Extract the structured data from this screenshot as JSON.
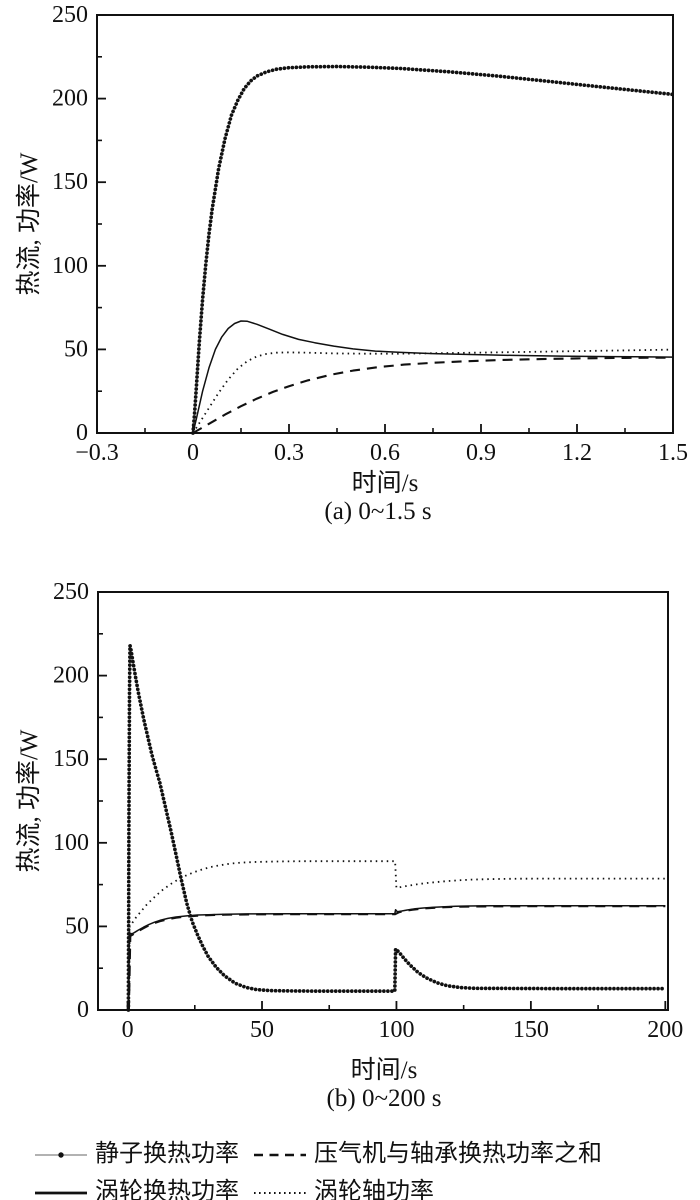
{
  "page": {
    "background": "#ffffff",
    "ink": "#111111",
    "legend_line_gray": "#858585"
  },
  "chart_data": [
    {
      "type": "line",
      "caption": "(a) 0~1.5 s",
      "xlabel": "时间/s",
      "ylabel": "热流, 功率/W",
      "xlim": [
        -0.3,
        1.5
      ],
      "ylim": [
        0,
        250
      ],
      "x_ticks": [
        {
          "v": -0.3,
          "label": "−0.3"
        },
        {
          "v": 0,
          "label": "0"
        },
        {
          "v": 0.3,
          "label": "0.3"
        },
        {
          "v": 0.6,
          "label": "0.6"
        },
        {
          "v": 0.9,
          "label": "0.9"
        },
        {
          "v": 1.2,
          "label": "1.2"
        },
        {
          "v": 1.5,
          "label": "1.5"
        }
      ],
      "x_minor": [
        -0.15,
        0.15,
        0.45,
        0.75,
        1.05,
        1.35
      ],
      "y_ticks": [
        {
          "v": 0,
          "label": "0"
        },
        {
          "v": 50,
          "label": "50"
        },
        {
          "v": 100,
          "label": "100"
        },
        {
          "v": 150,
          "label": "150"
        },
        {
          "v": 200,
          "label": "200"
        },
        {
          "v": 250,
          "label": "250"
        }
      ],
      "y_minor": [
        25,
        75,
        125,
        175,
        225
      ],
      "grid": false,
      "series": [
        {
          "name": "压气机与轴承换热功率之和",
          "style": "dashed",
          "points": [
            [
              0,
              0
            ],
            [
              0.05,
              5.5
            ],
            [
              0.1,
              11
            ],
            [
              0.15,
              16
            ],
            [
              0.2,
              20.6
            ],
            [
              0.25,
              24.6
            ],
            [
              0.3,
              28
            ],
            [
              0.36,
              31.5
            ],
            [
              0.43,
              34.8
            ],
            [
              0.5,
              37.3
            ],
            [
              0.58,
              39.4
            ],
            [
              0.66,
              40.9
            ],
            [
              0.75,
              42
            ],
            [
              0.85,
              42.9
            ],
            [
              0.95,
              43.6
            ],
            [
              1.05,
              44.1
            ],
            [
              1.2,
              44.6
            ],
            [
              1.35,
              44.9
            ],
            [
              1.5,
              45.1
            ]
          ]
        },
        {
          "name": "涡轮轴功率",
          "style": "dotted",
          "points": [
            [
              0,
              0
            ],
            [
              0.02,
              6
            ],
            [
              0.05,
              15
            ],
            [
              0.08,
              24
            ],
            [
              0.11,
              32
            ],
            [
              0.14,
              38.5
            ],
            [
              0.17,
              43
            ],
            [
              0.2,
              45.8
            ],
            [
              0.23,
              47.3
            ],
            [
              0.26,
              48
            ],
            [
              0.3,
              48.2
            ],
            [
              0.36,
              48
            ],
            [
              0.44,
              47.6
            ],
            [
              0.54,
              47.4
            ],
            [
              0.64,
              47.4
            ],
            [
              0.76,
              47.7
            ],
            [
              0.9,
              48.1
            ],
            [
              1.05,
              48.5
            ],
            [
              1.2,
              49
            ],
            [
              1.35,
              49.4
            ],
            [
              1.5,
              49.9
            ]
          ]
        },
        {
          "name": "涡轮换热功率",
          "style": "solid",
          "points": [
            [
              0,
              0
            ],
            [
              0.01,
              8
            ],
            [
              0.03,
              25
            ],
            [
              0.05,
              39
            ],
            [
              0.07,
              50
            ],
            [
              0.09,
              57.5
            ],
            [
              0.11,
              62.5
            ],
            [
              0.13,
              65.5
            ],
            [
              0.15,
              67
            ],
            [
              0.17,
              66.8
            ],
            [
              0.2,
              65
            ],
            [
              0.24,
              62
            ],
            [
              0.28,
              59
            ],
            [
              0.33,
              56
            ],
            [
              0.38,
              54
            ],
            [
              0.44,
              52
            ],
            [
              0.5,
              50.3
            ],
            [
              0.57,
              49
            ],
            [
              0.65,
              48.2
            ],
            [
              0.75,
              47.5
            ],
            [
              0.85,
              47
            ],
            [
              1.0,
              46.4
            ],
            [
              1.15,
              46
            ],
            [
              1.3,
              45.7
            ],
            [
              1.5,
              45.4
            ]
          ]
        },
        {
          "name": "静子换热功率",
          "style": "dot-markers",
          "points": [
            [
              0,
              0
            ],
            [
              0.005,
              12
            ],
            [
              0.01,
              26
            ],
            [
              0.02,
              55
            ],
            [
              0.03,
              80
            ],
            [
              0.04,
              101
            ],
            [
              0.05,
              119
            ],
            [
              0.06,
              134
            ],
            [
              0.08,
              158
            ],
            [
              0.1,
              176
            ],
            [
              0.12,
              190
            ],
            [
              0.14,
              199
            ],
            [
              0.16,
              206
            ],
            [
              0.18,
              210.5
            ],
            [
              0.2,
              213.5
            ],
            [
              0.23,
              216
            ],
            [
              0.26,
              217.5
            ],
            [
              0.3,
              218.5
            ],
            [
              0.36,
              219
            ],
            [
              0.45,
              219.2
            ],
            [
              0.55,
              218.8
            ],
            [
              0.65,
              218
            ],
            [
              0.8,
              216
            ],
            [
              0.95,
              213.5
            ],
            [
              1.1,
              210.5
            ],
            [
              1.25,
              207.5
            ],
            [
              1.4,
              204.5
            ],
            [
              1.5,
              202.5
            ]
          ]
        }
      ]
    },
    {
      "type": "line",
      "caption": "(b) 0~200 s",
      "xlabel": "时间/s",
      "ylabel": "热流, 功率/W",
      "xlim": [
        -11,
        201
      ],
      "ylim": [
        0,
        250
      ],
      "x_ticks": [
        {
          "v": 0,
          "label": "0"
        },
        {
          "v": 50,
          "label": "50"
        },
        {
          "v": 100,
          "label": "100"
        },
        {
          "v": 150,
          "label": "150"
        },
        {
          "v": 200,
          "label": "200"
        }
      ],
      "x_minor": [
        25,
        75,
        125,
        175
      ],
      "y_ticks": [
        {
          "v": 0,
          "label": "0"
        },
        {
          "v": 50,
          "label": "50"
        },
        {
          "v": 100,
          "label": "100"
        },
        {
          "v": 150,
          "label": "150"
        },
        {
          "v": 200,
          "label": "200"
        },
        {
          "v": 250,
          "label": "250"
        }
      ],
      "y_minor": [
        25,
        75,
        125,
        175,
        225
      ],
      "grid": false,
      "series": [
        {
          "name": "压气机与轴承换热功率之和",
          "style": "dashed",
          "points": [
            [
              0.5,
              0
            ],
            [
              1,
              44.3
            ],
            [
              2,
              45.2
            ],
            [
              4,
              47.2
            ],
            [
              6,
              49
            ],
            [
              8,
              50.7
            ],
            [
              10,
              52
            ],
            [
              12,
              53.1
            ],
            [
              15,
              54.3
            ],
            [
              18,
              55.2
            ],
            [
              22,
              55.9
            ],
            [
              26,
              56.4
            ],
            [
              30,
              56.7
            ],
            [
              36,
              57
            ],
            [
              45,
              57.2
            ],
            [
              60,
              57.3
            ],
            [
              80,
              57.3
            ],
            [
              99.5,
              57.3
            ],
            [
              101,
              58.5
            ],
            [
              103,
              59.2
            ],
            [
              106,
              60
            ],
            [
              110,
              60.7
            ],
            [
              114,
              61.1
            ],
            [
              118,
              61.5
            ],
            [
              122,
              61.7
            ],
            [
              128,
              61.9
            ],
            [
              140,
              62
            ],
            [
              160,
              62.1
            ],
            [
              200,
              62.1
            ]
          ]
        },
        {
          "name": "涡轮轴功率",
          "style": "dotted",
          "points": [
            [
              0.5,
              0
            ],
            [
              0.8,
              50
            ],
            [
              1.5,
              51.5
            ],
            [
              3,
              55
            ],
            [
              5,
              59
            ],
            [
              7,
              62.8
            ],
            [
              9,
              66
            ],
            [
              11,
              69
            ],
            [
              13,
              71.8
            ],
            [
              16,
              75.3
            ],
            [
              19,
              78.2
            ],
            [
              22,
              80.6
            ],
            [
              25,
              82.6
            ],
            [
              28,
              84.2
            ],
            [
              31,
              85.5
            ],
            [
              34,
              86.5
            ],
            [
              38,
              87.5
            ],
            [
              42,
              88.1
            ],
            [
              47,
              88.5
            ],
            [
              55,
              88.8
            ],
            [
              65,
              89
            ],
            [
              80,
              89
            ],
            [
              99.5,
              89
            ],
            [
              100,
              73
            ],
            [
              102,
              73.6
            ],
            [
              104,
              74.2
            ],
            [
              107,
              75
            ],
            [
              110,
              75.7
            ],
            [
              114,
              76.4
            ],
            [
              118,
              77
            ],
            [
              123,
              77.6
            ],
            [
              128,
              78
            ],
            [
              135,
              78.3
            ],
            [
              145,
              78.5
            ],
            [
              160,
              78.6
            ],
            [
              200,
              78.6
            ]
          ]
        },
        {
          "name": "涡轮换热功率",
          "style": "solid",
          "points": [
            [
              0.4,
              0
            ],
            [
              0.6,
              46
            ],
            [
              1,
              45.5
            ],
            [
              2,
              45.8
            ],
            [
              3,
              46.8
            ],
            [
              4,
              47.8
            ],
            [
              5,
              48.7
            ],
            [
              6,
              49.6
            ],
            [
              8,
              51.2
            ],
            [
              10,
              52.5
            ],
            [
              12,
              53.6
            ],
            [
              15,
              54.8
            ],
            [
              18,
              55.6
            ],
            [
              22,
              56.3
            ],
            [
              26,
              56.8
            ],
            [
              30,
              57
            ],
            [
              36,
              57.3
            ],
            [
              45,
              57.5
            ],
            [
              60,
              57.6
            ],
            [
              80,
              57.6
            ],
            [
              99.4,
              57.6
            ],
            [
              99.7,
              60
            ],
            [
              100.3,
              58.8
            ],
            [
              102,
              59.2
            ],
            [
              104,
              59.8
            ],
            [
              107,
              60.5
            ],
            [
              110,
              61
            ],
            [
              114,
              61.4
            ],
            [
              118,
              61.8
            ],
            [
              122,
              62
            ],
            [
              127,
              62.2
            ],
            [
              135,
              62.3
            ],
            [
              150,
              62.4
            ],
            [
              200,
              62.4
            ]
          ]
        },
        {
          "name": "静子换热功率",
          "style": "dot-markers",
          "points": [
            [
              0.3,
              0
            ],
            [
              0.5,
              110
            ],
            [
              0.7,
              190
            ],
            [
              0.9,
              218
            ],
            [
              1.2,
              216
            ],
            [
              2,
              208
            ],
            [
              3,
              199
            ],
            [
              4,
              190
            ],
            [
              5,
              182
            ],
            [
              6,
              174
            ],
            [
              7,
              167
            ],
            [
              8,
              160
            ],
            [
              9,
              153
            ],
            [
              10,
              147
            ],
            [
              12,
              136
            ],
            [
              14,
              122
            ],
            [
              16,
              108
            ],
            [
              18,
              93
            ],
            [
              20,
              78
            ],
            [
              22,
              64
            ],
            [
              24,
              53
            ],
            [
              26,
              45
            ],
            [
              28,
              38
            ],
            [
              30,
              32
            ],
            [
              33,
              25.5
            ],
            [
              36,
              20.5
            ],
            [
              40,
              16
            ],
            [
              44,
              13.5
            ],
            [
              48,
              12.2
            ],
            [
              53,
              11.6
            ],
            [
              60,
              11.4
            ],
            [
              70,
              11.3
            ],
            [
              85,
              11.3
            ],
            [
              99.4,
              11.3
            ],
            [
              99.7,
              36.5
            ],
            [
              101,
              34.5
            ],
            [
              103,
              30.5
            ],
            [
              105,
              27
            ],
            [
              108,
              22.5
            ],
            [
              111,
              19.3
            ],
            [
              115,
              16.3
            ],
            [
              119,
              14.5
            ],
            [
              124,
              13.4
            ],
            [
              129,
              13
            ],
            [
              140,
              12.9
            ],
            [
              160,
              12.8
            ],
            [
              200,
              12.8
            ]
          ]
        }
      ]
    }
  ],
  "legend": {
    "position": "bottom",
    "entries": [
      {
        "label": "静子换热功率",
        "style": "dot-markers"
      },
      {
        "label": "压气机与轴承换热功率之和",
        "style": "dashed"
      },
      {
        "label": "涡轮换热功率",
        "style": "solid"
      },
      {
        "label": "涡轮轴功率",
        "style": "dotted"
      }
    ]
  }
}
